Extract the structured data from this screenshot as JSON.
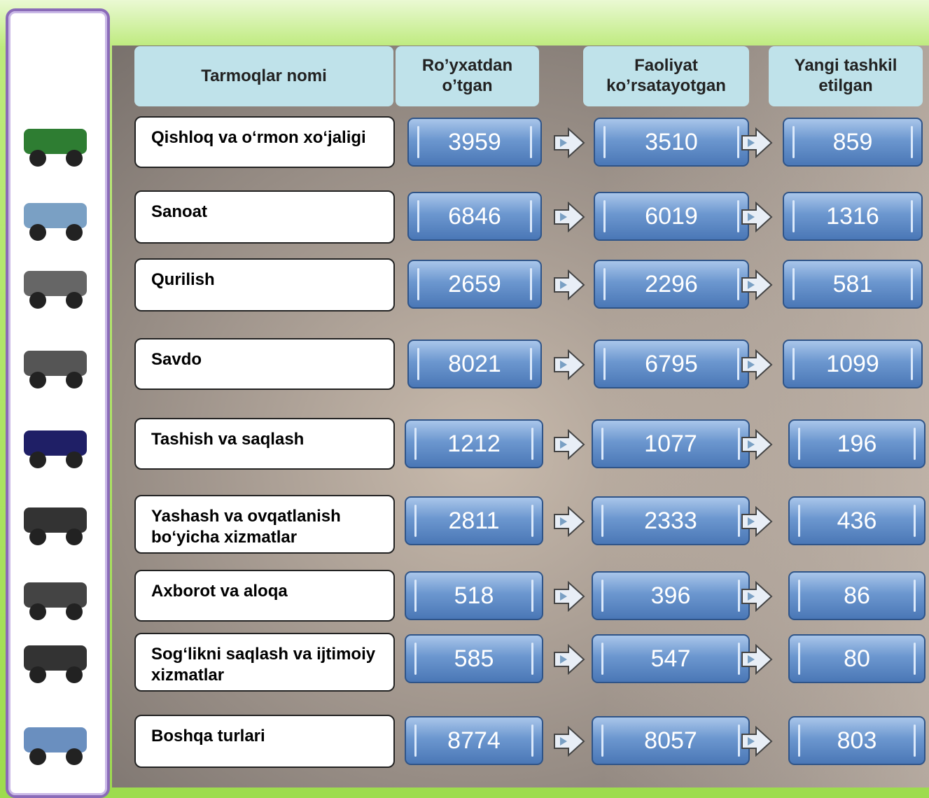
{
  "table": {
    "headers": [
      "Tarmoqlar nomi",
      "Ro’yxatdan o’tgan",
      "Faoliyat ko’rsatayotgan",
      "Yangi tashkil etilgan"
    ],
    "rows": [
      {
        "name": "Qishloq va o‘rmon xo‘jaligi",
        "values": [
          3959,
          3510,
          859
        ]
      },
      {
        "name": "Sanoat",
        "values": [
          6846,
          6019,
          1316
        ]
      },
      {
        "name": "Qurilish",
        "values": [
          2659,
          2296,
          581
        ]
      },
      {
        "name": "Savdo",
        "values": [
          8021,
          6795,
          1099
        ]
      },
      {
        "name": "Tashish va saqlash",
        "values": [
          1212,
          1077,
          196
        ]
      },
      {
        "name": "Yashash va ovqatlanish bo‘yicha xizmatlar",
        "values": [
          2811,
          2333,
          436
        ]
      },
      {
        "name": "Axborot va aloqa",
        "values": [
          518,
          396,
          86
        ]
      },
      {
        "name": "Sog‘likni saqlash va ijtimoiy xizmatlar",
        "values": [
          585,
          547,
          80
        ]
      },
      {
        "name": "Boshqa turlari",
        "values": [
          8774,
          8057,
          803
        ]
      }
    ]
  }
}
